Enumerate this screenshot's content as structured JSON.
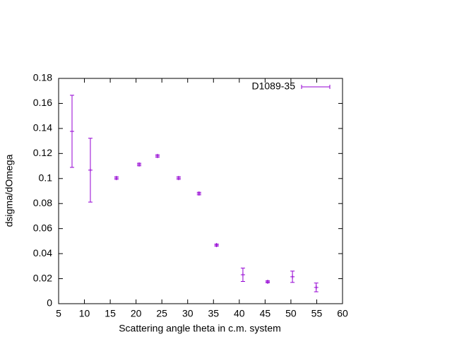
{
  "chart_data": {
    "type": "scatter",
    "x_label": "Scattering angle theta in c.m. system",
    "y_label": "dsigma/dOmega",
    "series": [
      {
        "name": "D1089-35",
        "color": "#9400d3",
        "x": [
          7.6,
          11.15,
          16.2,
          20.6,
          24.15,
          28.25,
          32.2,
          35.6,
          40.7,
          45.5,
          50.3,
          54.9
        ],
        "values": [
          0.1377,
          0.1067,
          0.1004,
          0.1112,
          0.118,
          0.1004,
          0.088,
          0.0468,
          0.0231,
          0.0175,
          0.0215,
          0.013
        ],
        "errors": [
          0.0288,
          0.0255,
          0.001,
          0.001,
          0.001,
          0.001,
          0.001,
          0.0008,
          0.0053,
          0.0008,
          0.0045,
          0.0035
        ]
      }
    ],
    "xlim": [
      5,
      60
    ],
    "xticks": [
      5,
      10,
      15,
      20,
      25,
      30,
      35,
      40,
      45,
      50,
      55,
      60
    ],
    "ylim": [
      0,
      0.18
    ],
    "yticks": [
      0,
      0.02,
      0.04,
      0.06,
      0.08,
      0.1,
      0.12,
      0.14,
      0.16,
      0.18
    ],
    "legend": "top right",
    "grid": false
  }
}
